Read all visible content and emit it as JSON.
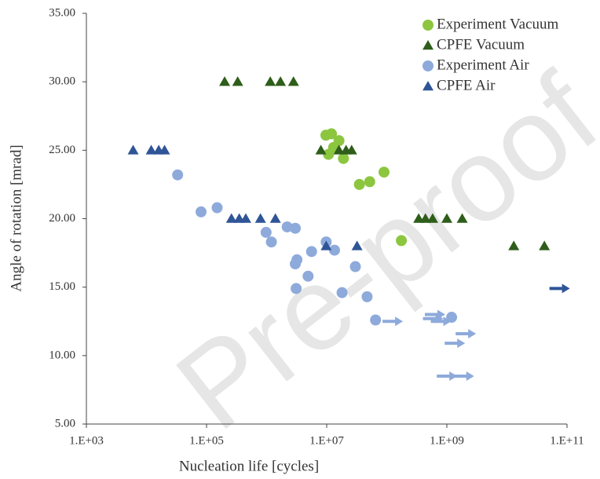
{
  "chart_data": {
    "type": "scatter",
    "watermark": "Pre-proof",
    "x_label": "Nucleation life [cycles]",
    "y_label": "Angle of rotation [mrad]",
    "xscale": "log",
    "xlim": [
      1000,
      100000000000
    ],
    "xticks": [
      {
        "value": 1000,
        "label": "1.E+03"
      },
      {
        "value": 100000,
        "label": "1.E+05"
      },
      {
        "value": 10000000,
        "label": "1.E+07"
      },
      {
        "value": 1000000000,
        "label": "1.E+09"
      },
      {
        "value": 100000000000,
        "label": "1.E+11"
      }
    ],
    "ylim": [
      5,
      35
    ],
    "yticks": [
      {
        "value": 5,
        "label": "5.00"
      },
      {
        "value": 10,
        "label": "10.00"
      },
      {
        "value": 15,
        "label": "15.00"
      },
      {
        "value": 20,
        "label": "20.00"
      },
      {
        "value": 25,
        "label": "25.00"
      },
      {
        "value": 30,
        "label": "30.00"
      },
      {
        "value": 35,
        "label": "35.00"
      }
    ],
    "legend": "top-right",
    "series": [
      {
        "name": "Experiment Vacuum",
        "color": "#8cc63f",
        "marker": "circle",
        "x": [
          9700000,
          12000000,
          16000000,
          10700000,
          13000000,
          19000000,
          35000000,
          52000000,
          90000000,
          175000000
        ],
        "values": [
          26.1,
          26.2,
          25.7,
          24.7,
          25.2,
          24.4,
          22.5,
          22.7,
          23.4,
          18.4
        ]
      },
      {
        "name": "CPFE Vacuum",
        "color": "#2e5e1a",
        "marker": "triangle",
        "x": [
          200000,
          330000,
          1150000,
          1700000,
          2800000,
          8000000,
          16000000,
          21000000,
          26000000,
          340000000,
          440000000,
          580000000,
          1000000000,
          1800000000,
          13000000000,
          42000000000
        ],
        "values": [
          30,
          30,
          30,
          30,
          30,
          25,
          25,
          25,
          25,
          20,
          20,
          20,
          20,
          20,
          18,
          18
        ]
      },
      {
        "name": "Experiment Air",
        "color": "#8eaadb",
        "marker": "circle",
        "x": [
          33000,
          81000,
          150000,
          980000,
          1200000,
          2200000,
          3000000,
          9800000,
          13500000,
          5600000,
          3200000,
          3000000,
          30000000,
          4900000,
          3100000,
          18000000,
          47000000,
          65000000,
          1200000000
        ],
        "values": [
          23.2,
          20.5,
          20.8,
          19.0,
          18.3,
          19.4,
          19.3,
          18.3,
          17.7,
          17.6,
          17.0,
          16.7,
          16.5,
          15.8,
          14.9,
          14.6,
          14.3,
          12.6,
          12.8
        ],
        "runouts": {
          "x": [
            85000000,
            430000000,
            400000000,
            540000000,
            920000000,
            1400000000,
            680000000,
            1300000000
          ],
          "values": [
            12.5,
            13.0,
            12.7,
            12.5,
            10.9,
            11.6,
            8.5,
            8.5
          ]
        }
      },
      {
        "name": "CPFE Air",
        "color": "#2f5597",
        "marker": "triangle",
        "x": [
          6000,
          12000,
          16000,
          20000,
          260000,
          350000,
          450000,
          790000,
          1400000,
          9800000,
          32000000
        ],
        "values": [
          25,
          25,
          25,
          25,
          20,
          20,
          20,
          20,
          20,
          18,
          18
        ],
        "runouts": {
          "x": [
            51000000000
          ],
          "values": [
            14.9
          ]
        }
      }
    ]
  }
}
